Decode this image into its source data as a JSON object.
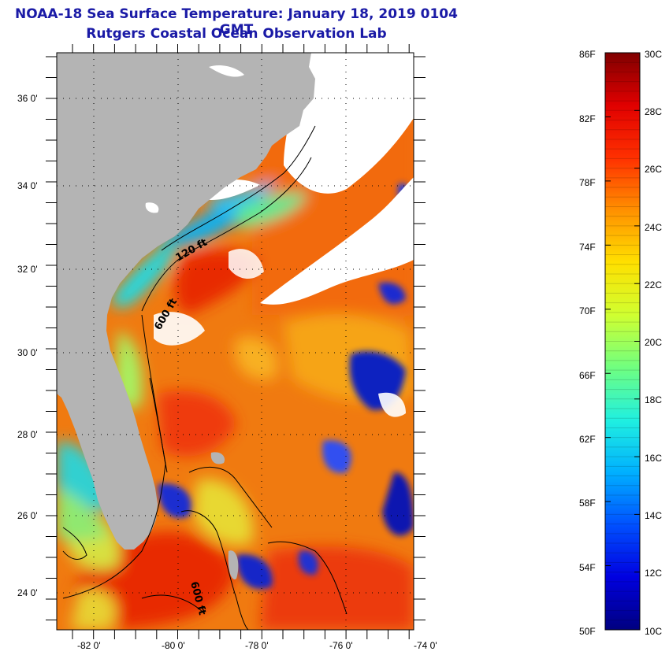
{
  "title": {
    "line1": "NOAA-18 Sea Surface Temperature:  January 18, 2019 0104 GMT",
    "line2": "Rutgers Coastal Ocean Observation Lab"
  },
  "map": {
    "lat_labels": [
      "36 0'",
      "34 0'",
      "32 0'",
      "30 0'",
      "28 0'",
      "26 0'",
      "24 0'"
    ],
    "lon_labels": [
      "-82 0'",
      "-80 0'",
      "-78 0'",
      "-76 0'",
      "-74 0'"
    ],
    "depth_labels": [
      "120 ft",
      "600 ft",
      "600 ft"
    ],
    "colors": {
      "land": "#b4b4b4",
      "cloud": "#ffffff"
    }
  },
  "colorbar": {
    "fahrenheit": [
      "86F",
      "82F",
      "78F",
      "74F",
      "70F",
      "66F",
      "62F",
      "58F",
      "54F",
      "50F"
    ],
    "celsius": [
      "30C",
      "28C",
      "26C",
      "24C",
      "22C",
      "20C",
      "18C",
      "16C",
      "14C",
      "12C",
      "10C"
    ],
    "stops": [
      "#00007f",
      "#0000e0",
      "#0050ff",
      "#00b0ff",
      "#20f0e0",
      "#70ff80",
      "#d0ff30",
      "#ffe000",
      "#ff9000",
      "#ff3000",
      "#e00000",
      "#800000"
    ]
  }
}
